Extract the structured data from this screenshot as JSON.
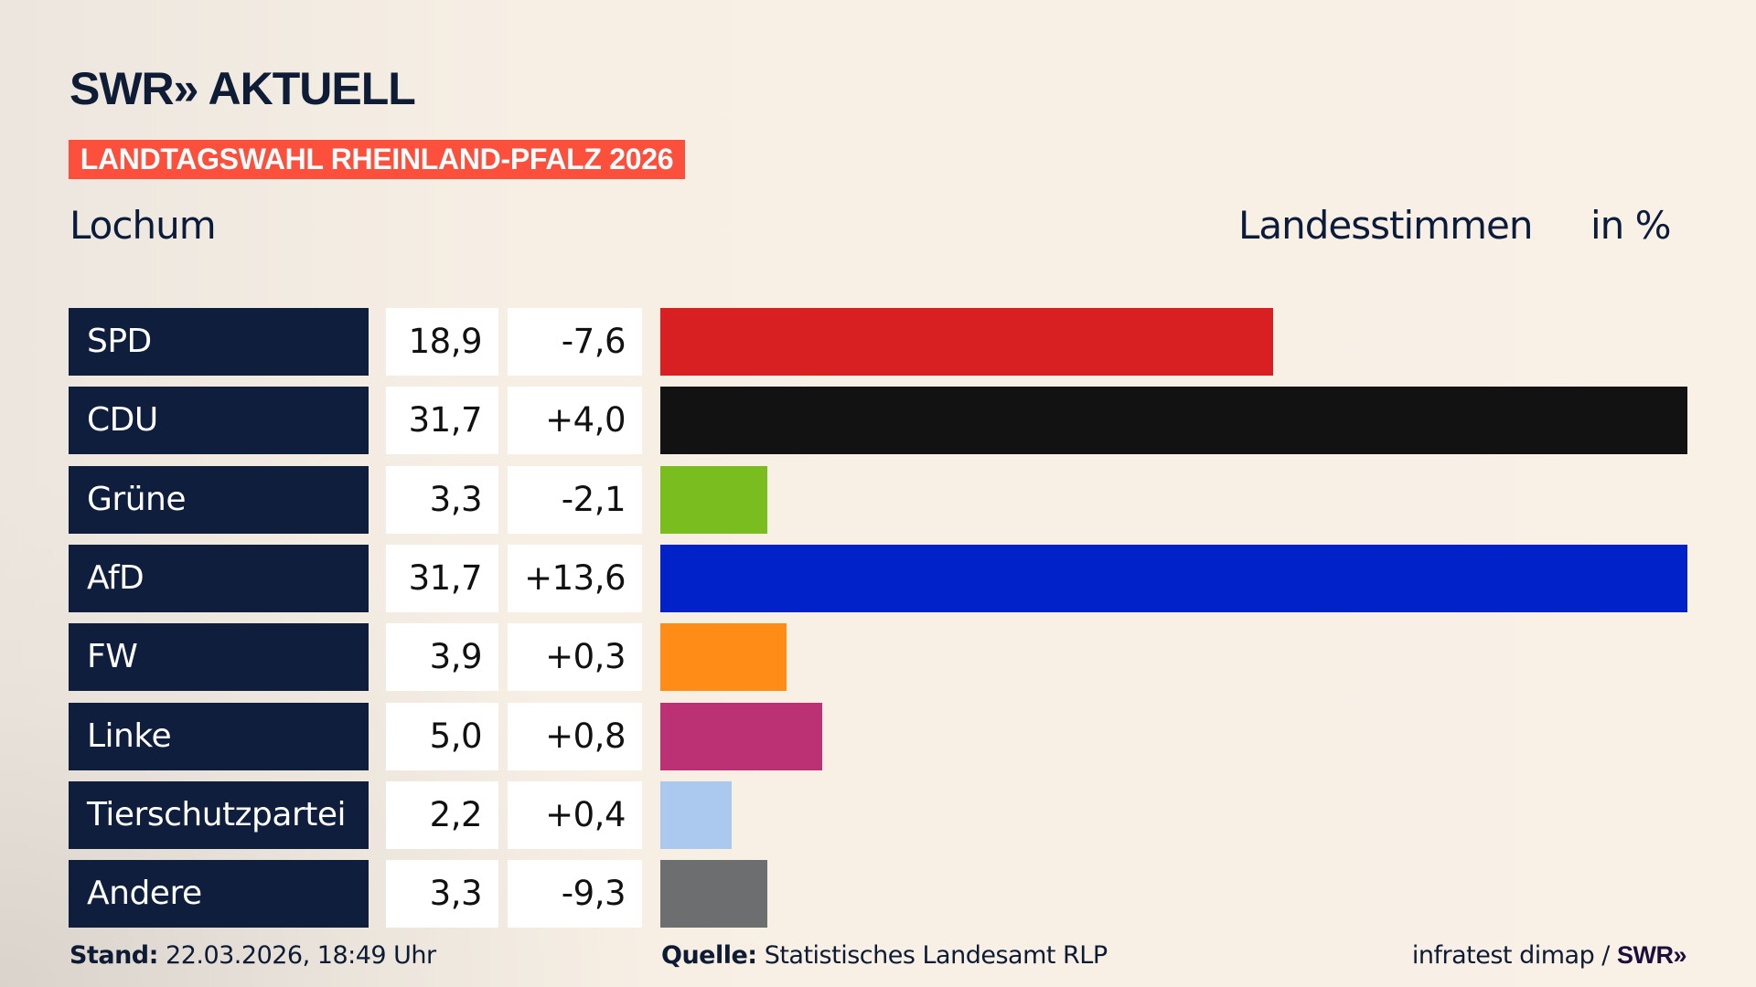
{
  "header": {
    "logo": "SWR» AKTUELL",
    "banner": "LANDTAGSWAHL RHEINLAND-PFALZ 2026",
    "region": "Lochum",
    "vote_type": "Landesstimmen",
    "unit": "in %"
  },
  "chart_data": {
    "type": "bar",
    "orientation": "horizontal",
    "xlim": [
      0,
      31.7
    ],
    "categories": [
      "SPD",
      "CDU",
      "Grüne",
      "AfD",
      "FW",
      "Linke",
      "Tierschutzpartei",
      "Andere"
    ],
    "values": [
      18.9,
      31.7,
      3.3,
      31.7,
      3.9,
      5.0,
      2.2,
      3.3
    ],
    "value_labels": [
      "18,9",
      "31,7",
      "3,3",
      "31,7",
      "3,9",
      "5,0",
      "2,2",
      "3,3"
    ],
    "diff_labels": [
      "-7,6",
      "+4,0",
      "-2,1",
      "+13,6",
      "+0,3",
      "+0,8",
      "+0,4",
      "-9,3"
    ],
    "colors": [
      "#d81f22",
      "#121212",
      "#7abd1f",
      "#0022c8",
      "#fe8c17",
      "#bc3174",
      "#abc8ef",
      "#6d6e70"
    ]
  },
  "footer": {
    "stand_label": "Stand:",
    "stand_value": "22.03.2026, 18:49 Uhr",
    "source_label": "Quelle:",
    "source_value": "Statistisches Landesamt RLP",
    "credit": "infratest dimap / ",
    "credit_logo": "SWR»"
  }
}
